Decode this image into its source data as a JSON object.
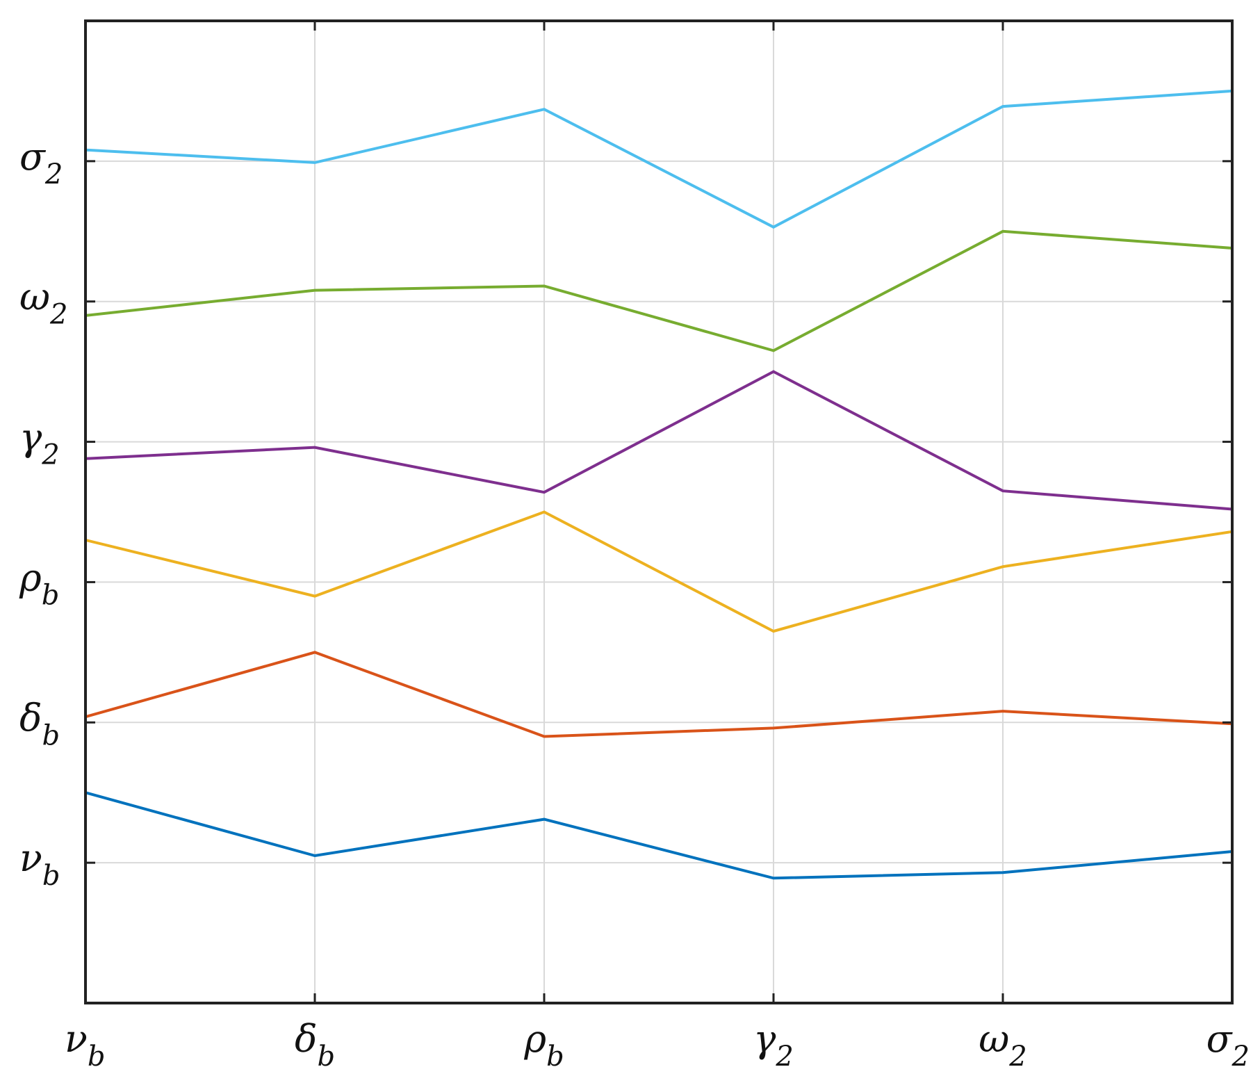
{
  "chart_data": {
    "type": "line",
    "title": "",
    "xlabel": "",
    "ylabel": "",
    "grid": true,
    "legend": "none",
    "categories": [
      {
        "base": "ν",
        "sub": "b"
      },
      {
        "base": "δ",
        "sub": "b"
      },
      {
        "base": "ρ",
        "sub": "b"
      },
      {
        "base": "γ",
        "sub": "2"
      },
      {
        "base": "ω",
        "sub": "2"
      },
      {
        "base": "σ",
        "sub": "2"
      }
    ],
    "yticks": [
      {
        "value": 1,
        "base": "ν",
        "sub": "b"
      },
      {
        "value": 2,
        "base": "δ",
        "sub": "b"
      },
      {
        "value": 3,
        "base": "ρ",
        "sub": "b"
      },
      {
        "value": 4,
        "base": "γ",
        "sub": "2"
      },
      {
        "value": 5,
        "base": "ω",
        "sub": "2"
      },
      {
        "value": 6,
        "base": "σ",
        "sub": "2"
      }
    ],
    "ylim": [
      0,
      7
    ],
    "xlim": [
      1,
      6
    ],
    "series": [
      {
        "color": "#0072BD",
        "values": [
          1.5,
          1.05,
          1.31,
          0.89,
          0.93,
          1.08
        ]
      },
      {
        "color": "#D95319",
        "values": [
          2.04,
          2.5,
          1.9,
          1.96,
          2.08,
          1.99
        ]
      },
      {
        "color": "#EDB120",
        "values": [
          3.3,
          2.9,
          3.5,
          2.65,
          3.11,
          3.36
        ]
      },
      {
        "color": "#7E2F8E",
        "values": [
          3.88,
          3.96,
          3.64,
          4.5,
          3.65,
          3.52
        ]
      },
      {
        "color": "#77AC30",
        "values": [
          4.9,
          5.08,
          5.11,
          4.65,
          5.5,
          5.38
        ]
      },
      {
        "color": "#4DBEEE",
        "values": [
          6.08,
          5.99,
          6.37,
          5.53,
          6.39,
          6.5
        ]
      }
    ]
  }
}
